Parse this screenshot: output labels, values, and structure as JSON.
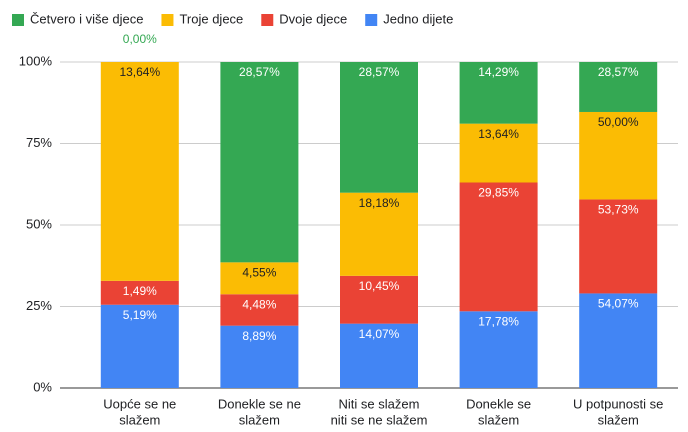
{
  "chart_data": {
    "type": "bar",
    "stacked": "percent",
    "categories": [
      [
        "Uopće se ne",
        "slažem"
      ],
      [
        "Donekle se ne",
        "slažem"
      ],
      [
        "Niti se slažem",
        "niti se ne slažem"
      ],
      [
        "Donekle se",
        "slažem"
      ],
      [
        "U potpunosti se",
        "slažem"
      ]
    ],
    "series": [
      {
        "name": "Četvero i više djece",
        "color": "#34a853",
        "label_color": "#ffffff",
        "values": [
          0,
          28.57,
          28.57,
          14.29,
          28.57
        ],
        "value_labels": [
          "0,00%",
          "28,57%",
          "28,57%",
          "14,29%",
          "28,57%"
        ]
      },
      {
        "name": "Troje djece",
        "color": "#fbbc04",
        "label_color": "#202124",
        "values": [
          13.64,
          4.55,
          18.18,
          13.64,
          50.0
        ],
        "value_labels": [
          "13,64%",
          "4,55%",
          "18,18%",
          "13,64%",
          "50,00%"
        ]
      },
      {
        "name": "Dvoje djece",
        "color": "#ea4335",
        "label_color": "#ffffff",
        "values": [
          1.49,
          4.48,
          10.45,
          29.85,
          53.73
        ],
        "value_labels": [
          "1,49%",
          "4,48%",
          "10,45%",
          "29,85%",
          "53,73%"
        ]
      },
      {
        "name": "Jedno dijete",
        "color": "#4285f4",
        "label_color": "#ffffff",
        "values": [
          5.19,
          8.89,
          14.07,
          17.78,
          54.07
        ],
        "value_labels": [
          "5,19%",
          "8,89%",
          "14,07%",
          "17,78%",
          "54,07%"
        ]
      }
    ],
    "ylim": [
      0,
      100
    ],
    "yticks": [
      {
        "value": 0,
        "label": "0%"
      },
      {
        "value": 25,
        "label": "25%"
      },
      {
        "value": 50,
        "label": "50%"
      },
      {
        "value": 75,
        "label": "75%"
      },
      {
        "value": 100,
        "label": "100%"
      }
    ],
    "grid": true,
    "legend": "top"
  }
}
